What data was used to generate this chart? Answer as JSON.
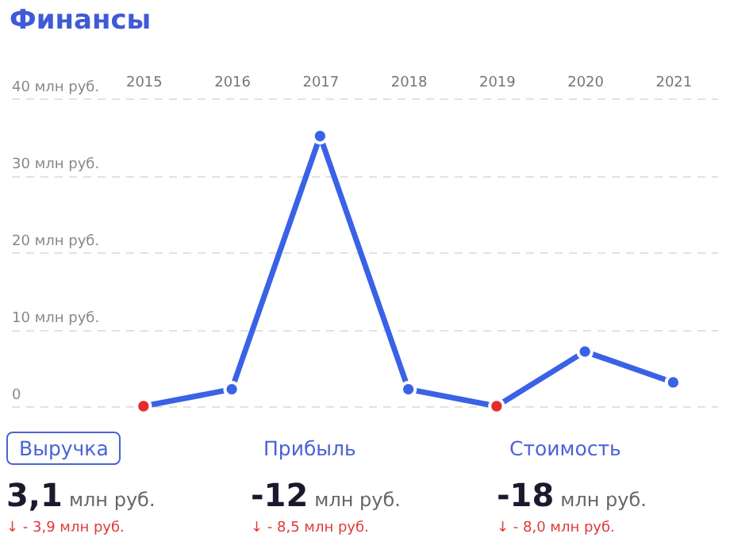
{
  "chart_data": {
    "type": "line",
    "title": "Финансы",
    "categories": [
      "2015",
      "2016",
      "2017",
      "2018",
      "2019",
      "2020",
      "2021"
    ],
    "series": [
      {
        "color": "#3a62e6",
        "values": [
          0,
          2.2,
          35.1,
          2.2,
          0,
          7.1,
          3.1
        ]
      }
    ],
    "colors": [
      "#e52b2b",
      "#3a62e6",
      "#3a62e6",
      "#3a62e6",
      "#e52b2b",
      "#3a62e6",
      "#3a62e6"
    ],
    "ylim": [
      0,
      40
    ],
    "yticks": [
      0,
      {
        "value": 10,
        "label": "10 млн руб."
      },
      {
        "value": 20,
        "label": "20 млн руб."
      },
      {
        "value": 30,
        "label": "30 млн руб."
      },
      {
        "value": 40,
        "label": "40 млн руб."
      }
    ],
    "grid": "y",
    "marker": "circle",
    "line_style": "solid",
    "annotations": [
      "Выручка",
      "3,1 млн руб.",
      "↓ - 3,9 млн руб.",
      "Прибыль",
      "-12 млн руб.",
      "↓ - 8,5 млн руб.",
      "Стоимость",
      "-18 млн руб.",
      "↓ - 8,0 млн руб."
    ]
  }
}
